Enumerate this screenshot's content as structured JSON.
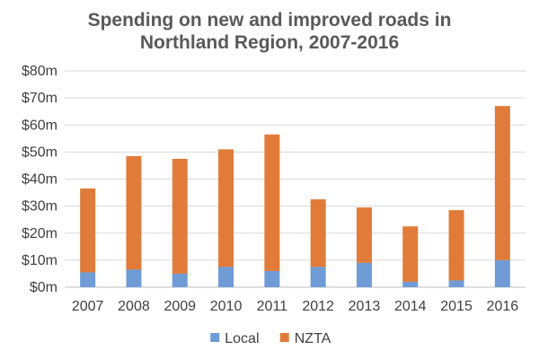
{
  "chart_data": {
    "type": "bar",
    "stacked": true,
    "title": [
      "Spending on new and improved roads in",
      "Northland Region, 2007-2016"
    ],
    "xlabel": "",
    "ylabel": "",
    "ylim": [
      0,
      80
    ],
    "y_ticks": [
      0,
      10,
      20,
      30,
      40,
      50,
      60,
      70,
      80
    ],
    "y_tick_labels": [
      "$0m",
      "$10m",
      "$20m",
      "$30m",
      "$40m",
      "$50m",
      "$60m",
      "$70m",
      "$80m"
    ],
    "grid": true,
    "legend_position": "bottom-center",
    "categories": [
      "2007",
      "2008",
      "2009",
      "2010",
      "2011",
      "2012",
      "2013",
      "2014",
      "2015",
      "2016"
    ],
    "series": [
      {
        "name": "Local",
        "color": "#6f9bd6",
        "values": [
          5.5,
          6.5,
          5.0,
          7.5,
          6.0,
          7.5,
          9.0,
          2.0,
          2.5,
          10.0
        ]
      },
      {
        "name": "NZTA",
        "color": "#e07b39",
        "values": [
          31.0,
          42.0,
          42.5,
          43.5,
          50.5,
          25.0,
          20.5,
          20.5,
          26.0,
          57.0
        ]
      }
    ]
  }
}
